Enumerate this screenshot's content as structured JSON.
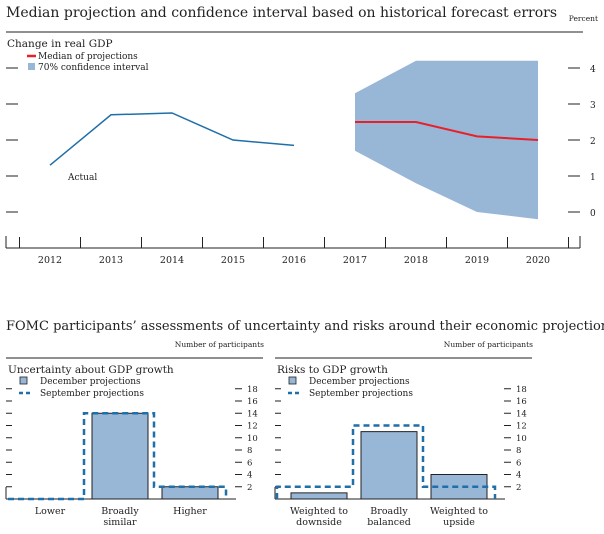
{
  "chart_data": [
    {
      "type": "line",
      "title": "Median projection and confidence interval based on historical forecast errors",
      "unit_label": "Percent",
      "subtitle": "Change in real GDP",
      "legend": [
        "Median of projections",
        "70% confidence interval"
      ],
      "legend_placement": "top-left",
      "annotation": "Actual",
      "x": [
        "2012",
        "2013",
        "2014",
        "2015",
        "2016",
        "2017",
        "2018",
        "2019",
        "2020"
      ],
      "ylim": [
        -0.8,
        4.6
      ],
      "yticks": [
        "0",
        "1",
        "2",
        "3",
        "4"
      ],
      "series": [
        {
          "name": "Actual",
          "x": [
            "2012",
            "2013",
            "2014",
            "2015",
            "2016"
          ],
          "values": [
            1.3,
            2.7,
            2.75,
            2.0,
            1.85
          ],
          "color": "#1f6fa8"
        },
        {
          "name": "Median of projections",
          "x": [
            "2017",
            "2018",
            "2019",
            "2020"
          ],
          "values": [
            2.5,
            2.5,
            2.1,
            2.0
          ],
          "color": "#e8202a"
        }
      ],
      "band": {
        "name": "70% confidence interval",
        "x": [
          "2017",
          "2018",
          "2019",
          "2020"
        ],
        "upper": [
          3.3,
          4.2,
          4.2,
          4.2
        ],
        "lower": [
          1.7,
          0.8,
          0.0,
          -0.2
        ],
        "color": "#98b6d6"
      }
    },
    {
      "type": "bar",
      "title": "Uncertainty about GDP growth",
      "unit_label": "Number of participants",
      "categories": [
        [
          "Lower"
        ],
        [
          "Broadly",
          "similar"
        ],
        [
          "Higher"
        ]
      ],
      "legend": [
        "December projections",
        "September projections"
      ],
      "series": [
        {
          "name": "December projections",
          "values": [
            0,
            14,
            2
          ]
        },
        {
          "name": "September projections",
          "values": [
            0,
            14,
            2
          ]
        }
      ],
      "yticks": [
        "2",
        "4",
        "6",
        "8",
        "10",
        "12",
        "14",
        "16",
        "18"
      ],
      "ylim": [
        0,
        20
      ]
    },
    {
      "type": "bar",
      "title": "Risks to GDP growth",
      "unit_label": "Number of participants",
      "categories": [
        [
          "Weighted to",
          "downside"
        ],
        [
          "Broadly",
          "balanced"
        ],
        [
          "Weighted to",
          "upside"
        ]
      ],
      "legend": [
        "December projections",
        "September projections"
      ],
      "series": [
        {
          "name": "December projections",
          "values": [
            1,
            11,
            4
          ]
        },
        {
          "name": "September projections",
          "values": [
            2,
            12,
            2
          ]
        }
      ],
      "yticks": [
        "2",
        "4",
        "6",
        "8",
        "10",
        "12",
        "14",
        "16",
        "18"
      ],
      "ylim": [
        0,
        20
      ]
    }
  ],
  "section_title": "FOMC participants’ assessments of uncertainty and risks around their economic projections",
  "colors": {
    "bar": "#98b6d6",
    "dash": "#1f6fa8",
    "median": "#e8202a"
  }
}
